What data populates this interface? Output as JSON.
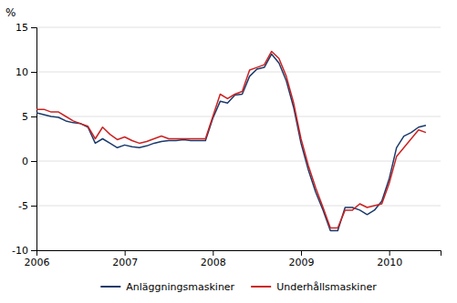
{
  "chart_data": {
    "type": "line",
    "ylabel": "%",
    "x": [
      2006,
      2006.0833333333333,
      2006.1666666666667,
      2006.25,
      2006.3333333333333,
      2006.4166666666667,
      2006.5,
      2006.5833333333333,
      2006.6666666666667,
      2006.75,
      2006.8333333333333,
      2006.9166666666667,
      2007,
      2007.0833333333333,
      2007.1666666666667,
      2007.25,
      2007.3333333333333,
      2007.4166666666667,
      2007.5,
      2007.5833333333333,
      2007.6666666666667,
      2007.75,
      2007.8333333333333,
      2007.9166666666667,
      2008,
      2008.0833333333333,
      2008.1666666666667,
      2008.25,
      2008.3333333333333,
      2008.4166666666667,
      2008.5,
      2008.5833333333333,
      2008.6666666666667,
      2008.75,
      2008.8333333333333,
      2008.9166666666667,
      2009,
      2009.0833333333333,
      2009.1666666666667,
      2009.25,
      2009.3333333333333,
      2009.4166666666667,
      2009.5,
      2009.5833333333333,
      2009.6666666666667,
      2009.75,
      2009.8333333333333,
      2009.9166666666667,
      2010,
      2010.0833333333333,
      2010.1666666666667,
      2010.25,
      2010.3333333333333,
      2010.4166666666667
    ],
    "series": [
      {
        "name": "Anläggningsmaskiner",
        "color": "#1a3a6b",
        "values": [
          5.4,
          5.2,
          5.0,
          4.9,
          4.5,
          4.3,
          4.2,
          3.8,
          2.0,
          2.5,
          2.0,
          1.5,
          1.8,
          1.6,
          1.5,
          1.7,
          2.0,
          2.2,
          2.3,
          2.3,
          2.4,
          2.3,
          2.3,
          2.3,
          4.8,
          6.7,
          6.5,
          7.4,
          7.5,
          9.5,
          10.3,
          10.5,
          12.0,
          11.0,
          9.0,
          6.0,
          2.0,
          -1.0,
          -3.5,
          -5.5,
          -7.8,
          -7.8,
          -5.2,
          -5.2,
          -5.5,
          -6.0,
          -5.5,
          -4.5,
          -2.0,
          1.5,
          2.8,
          3.2,
          3.8,
          4.0
        ]
      },
      {
        "name": "Underhållsmaskiner",
        "color": "#cc2222",
        "values": [
          5.8,
          5.8,
          5.5,
          5.5,
          5.0,
          4.5,
          4.2,
          3.9,
          2.5,
          3.8,
          3.0,
          2.4,
          2.7,
          2.3,
          2.0,
          2.2,
          2.5,
          2.8,
          2.5,
          2.5,
          2.5,
          2.5,
          2.5,
          2.5,
          5.0,
          7.5,
          7.0,
          7.5,
          7.8,
          10.2,
          10.5,
          10.8,
          12.3,
          11.5,
          9.5,
          6.5,
          2.5,
          -0.5,
          -3.0,
          -5.2,
          -7.5,
          -7.5,
          -5.5,
          -5.5,
          -4.8,
          -5.2,
          -5.0,
          -4.8,
          -2.5,
          0.5,
          1.5,
          2.5,
          3.5,
          3.2
        ]
      }
    ],
    "xlim": [
      2006.0,
      2010.583
    ],
    "xticks": [
      2006,
      2007,
      2008,
      2009,
      2010
    ],
    "ylim": [
      -10,
      15
    ],
    "yticks": [
      -10,
      -5,
      0,
      5,
      10,
      15
    ],
    "grid": "y",
    "legend": "bottom"
  }
}
